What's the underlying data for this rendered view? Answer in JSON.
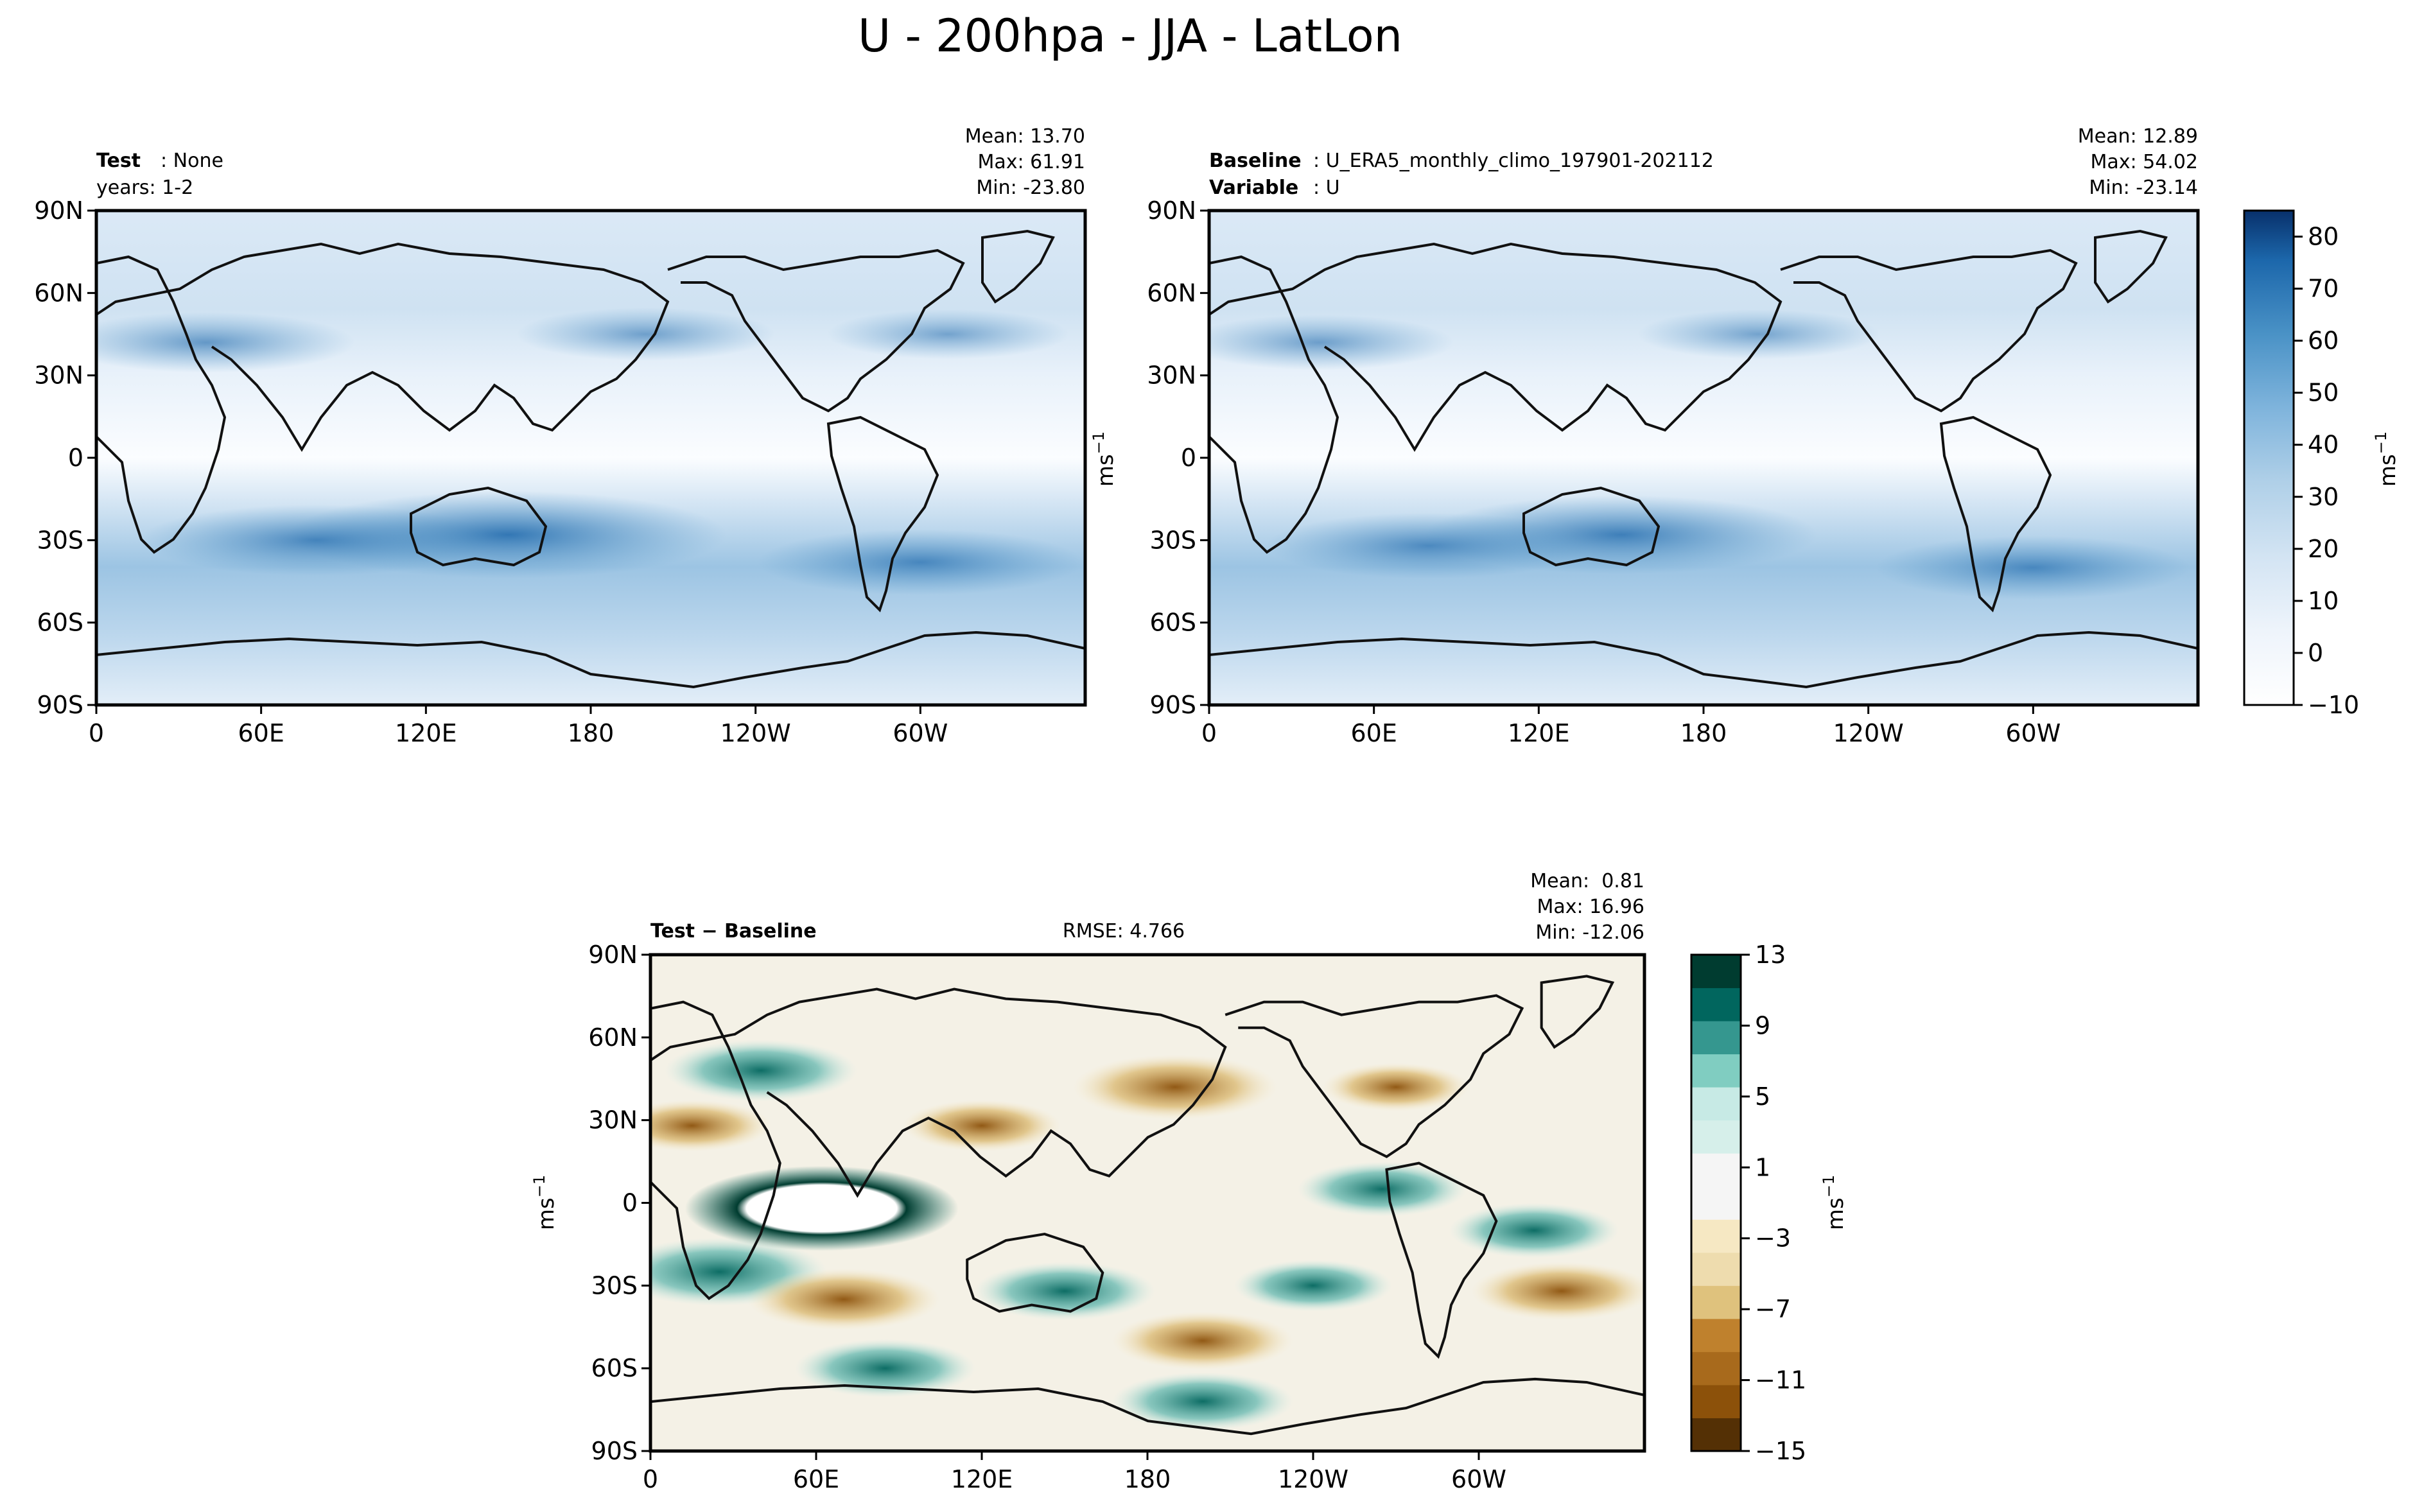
{
  "figure": {
    "title": "U - 200hpa - JJA - LatLon"
  },
  "chart_data": [
    {
      "type": "heatmap",
      "name": "test",
      "left_label_bold": "Test",
      "left_label_text": ": None",
      "left_label_line2": "years: 1-2",
      "stats": {
        "mean": "Mean: 13.70",
        "max": "Max: 61.91",
        "min": "Min: -23.80"
      },
      "xticks": [
        "0",
        "60E",
        "120E",
        "180",
        "120W",
        "60W"
      ],
      "yticks": [
        "90N",
        "60N",
        "30N",
        "0",
        "30S",
        "60S",
        "90S"
      ],
      "xlim": [
        0,
        360
      ],
      "ylim": [
        -90,
        90
      ],
      "colormap": "Blues",
      "levels": [
        -10,
        -5,
        0,
        5,
        10,
        15,
        20,
        25,
        30,
        35,
        40,
        45,
        50,
        55,
        60,
        65,
        70,
        75,
        80,
        85
      ],
      "jets": [
        {
          "lon": 150,
          "lat": -28,
          "value": 60
        },
        {
          "lon": 80,
          "lat": -30,
          "value": 45
        },
        {
          "lon": 300,
          "lat": -38,
          "value": 40
        },
        {
          "lon": 40,
          "lat": 42,
          "value": 35
        },
        {
          "lon": 200,
          "lat": 45,
          "value": 28
        },
        {
          "lon": 310,
          "lat": 45,
          "value": 25
        }
      ]
    },
    {
      "type": "heatmap",
      "name": "baseline",
      "left_label_bold": "Baseline",
      "left_label_text": ": U_ERA5_monthly_climo_197901-202112",
      "left_label_bold2": "Variable",
      "left_label_text2": ": U",
      "stats": {
        "mean": "Mean: 12.89",
        "max": "Max: 54.02",
        "min": "Min: -23.14"
      },
      "xticks": [
        "0",
        "60E",
        "120E",
        "180",
        "120W",
        "60W"
      ],
      "yticks": [
        "90N",
        "60N",
        "30N",
        "0",
        "30S",
        "60S",
        "90S"
      ],
      "xlim": [
        0,
        360
      ],
      "ylim": [
        -90,
        90
      ],
      "colorbar": {
        "ticks": [
          "80",
          "70",
          "60",
          "50",
          "40",
          "30",
          "20",
          "10",
          "0",
          "−10"
        ],
        "label": "ms",
        "label_sup": "−1",
        "range": [
          -10,
          85
        ]
      },
      "jets": [
        {
          "lon": 150,
          "lat": -28,
          "value": 52
        },
        {
          "lon": 80,
          "lat": -32,
          "value": 40
        },
        {
          "lon": 300,
          "lat": -40,
          "value": 38
        },
        {
          "lon": 40,
          "lat": 42,
          "value": 30
        },
        {
          "lon": 200,
          "lat": 45,
          "value": 25
        }
      ]
    },
    {
      "type": "heatmap",
      "name": "difference",
      "left_label_bold": "Test − Baseline",
      "center_label": "RMSE: 4.766",
      "stats": {
        "mean": "Mean:  0.81",
        "max": "Max: 16.96",
        "min": "Min: -12.06"
      },
      "xticks": [
        "0",
        "60E",
        "120E",
        "180",
        "120W",
        "60W"
      ],
      "yticks": [
        "90N",
        "60N",
        "30N",
        "0",
        "30S",
        "60S",
        "90S"
      ],
      "xlim": [
        0,
        360
      ],
      "ylim": [
        -90,
        90
      ],
      "colormap": "BrBG",
      "colorbar": {
        "ticks": [
          "13",
          "9",
          "5",
          "1",
          "−3",
          "−7",
          "−11",
          "−15"
        ],
        "label": "ms",
        "label_sup": "−1",
        "range": [
          -15,
          13
        ]
      },
      "anomalies": [
        {
          "lon": 62,
          "lat": -2,
          "value": 17
        },
        {
          "lon": 25,
          "lat": -25,
          "value": 12
        },
        {
          "lon": 40,
          "lat": 48,
          "value": 10
        },
        {
          "lon": 150,
          "lat": -32,
          "value": 9
        },
        {
          "lon": 200,
          "lat": -72,
          "value": 9
        },
        {
          "lon": 85,
          "lat": -60,
          "value": 9
        },
        {
          "lon": 265,
          "lat": 5,
          "value": 8
        },
        {
          "lon": 320,
          "lat": -10,
          "value": 8
        },
        {
          "lon": 240,
          "lat": -30,
          "value": 7
        },
        {
          "lon": 190,
          "lat": 42,
          "value": -11
        },
        {
          "lon": 70,
          "lat": -35,
          "value": -10
        },
        {
          "lon": 200,
          "lat": -50,
          "value": -9
        },
        {
          "lon": 330,
          "lat": -32,
          "value": -9
        },
        {
          "lon": 15,
          "lat": 28,
          "value": -7
        },
        {
          "lon": 120,
          "lat": 28,
          "value": -7
        },
        {
          "lon": 270,
          "lat": 42,
          "value": -6
        }
      ]
    }
  ]
}
